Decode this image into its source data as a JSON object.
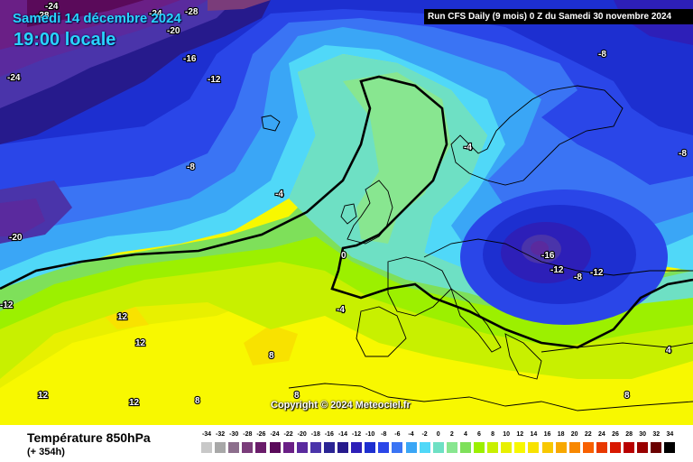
{
  "header": {
    "date": "Samedi 14 décembre 2024",
    "local_time": "19:00 locale",
    "run_info": "Run CFS Daily (9 mois) 0 Z du Samedi 30 novembre 2024"
  },
  "copyright": "Copyright © 2024 Meteociel.fr",
  "legend": {
    "title": "Température 850hPa",
    "subtitle": "(+ 354h)",
    "unit_values": [
      -34,
      -32,
      -30,
      -28,
      -26,
      -24,
      -22,
      -20,
      -18,
      -16,
      -14,
      -12,
      -10,
      -8,
      -6,
      -4,
      -2,
      0,
      2,
      4,
      6,
      8,
      10,
      12,
      14,
      16,
      18,
      20,
      22,
      24,
      26,
      28,
      30,
      32,
      34
    ],
    "colors": [
      "#c8c8c8",
      "#a8a8a8",
      "#8c6e8c",
      "#7a3c7a",
      "#6a1c6a",
      "#5a0a5a",
      "#6a1f86",
      "#5a2a9e",
      "#4a34aa",
      "#2a2494",
      "#261a8c",
      "#2d1fb8",
      "#1d2fd0",
      "#2a46e8",
      "#3a74f4",
      "#3aa6f6",
      "#50d8f8",
      "#6ee0c4",
      "#88e690",
      "#7ee05a",
      "#9cf000",
      "#c8f000",
      "#e8f000",
      "#f8f800",
      "#f8e200",
      "#f8c800",
      "#f8a800",
      "#f88800",
      "#f86000",
      "#e83800",
      "#d81800",
      "#b80000",
      "#980000",
      "#6a0000",
      "#000000"
    ]
  },
  "map": {
    "labels": [
      {
        "text": "-24",
        "id": "t1"
      },
      {
        "text": "-28",
        "id": "t2"
      },
      {
        "text": "-24",
        "id": "t3"
      },
      {
        "text": "-28",
        "id": "t4"
      },
      {
        "text": "-20",
        "id": "t5"
      },
      {
        "text": "-16",
        "id": "t6"
      },
      {
        "text": "-24",
        "id": "t7"
      },
      {
        "text": "-12",
        "id": "t8"
      },
      {
        "text": "-8",
        "id": "t9"
      },
      {
        "text": "-4",
        "id": "t10"
      },
      {
        "text": "-20",
        "id": "t11"
      },
      {
        "text": "-12",
        "id": "t12"
      },
      {
        "text": "0",
        "id": "t13"
      },
      {
        "text": "-4",
        "id": "t14"
      },
      {
        "text": "-8",
        "id": "t15"
      },
      {
        "text": "-8",
        "id": "t16"
      },
      {
        "text": "-4",
        "id": "t17"
      },
      {
        "text": "-16",
        "id": "t18"
      },
      {
        "text": "-12",
        "id": "t19"
      },
      {
        "text": "-8",
        "id": "t20"
      },
      {
        "text": "-12",
        "id": "t21"
      },
      {
        "text": "12",
        "id": "t22"
      },
      {
        "text": "12",
        "id": "t23"
      },
      {
        "text": "8",
        "id": "t24"
      },
      {
        "text": "12",
        "id": "t25"
      },
      {
        "text": "12",
        "id": "t26"
      },
      {
        "text": "8",
        "id": "t27"
      },
      {
        "text": "8",
        "id": "t28"
      },
      {
        "text": "4",
        "id": "t29"
      },
      {
        "text": "8",
        "id": "t30"
      }
    ]
  }
}
